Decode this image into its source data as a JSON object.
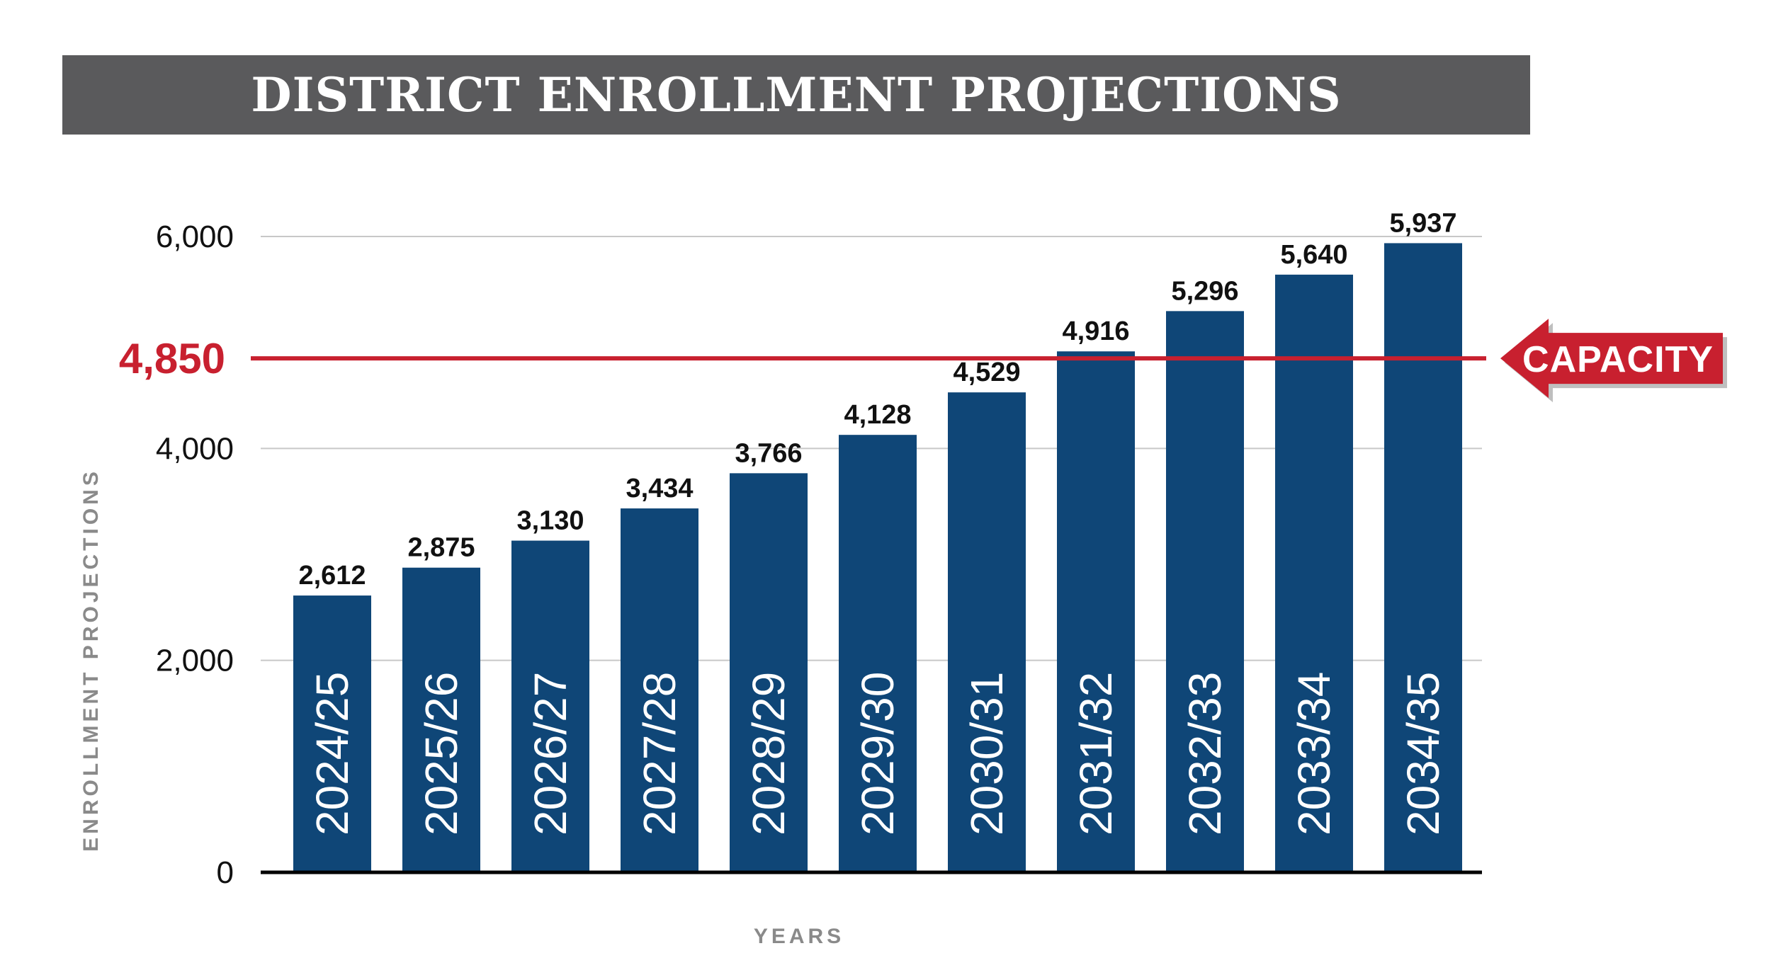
{
  "title": "DISTRICT ENROLLMENT PROJECTIONS",
  "colors": {
    "bar": "#0f4677",
    "capacity": "#c8202f",
    "title_bg": "#5a5a5c",
    "grid": "#c8c8c8"
  },
  "chart_data": {
    "type": "bar",
    "title": "DISTRICT ENROLLMENT PROJECTIONS",
    "xlabel": "YEARS",
    "ylabel": "ENROLLMENT PROJECTIONS",
    "categories": [
      "2024/25",
      "2025/26",
      "2026/27",
      "2027/28",
      "2028/29",
      "2029/30",
      "2030/31",
      "2031/32",
      "2032/33",
      "2033/34",
      "2034/35"
    ],
    "values": [
      2612,
      2875,
      3130,
      3434,
      3766,
      4128,
      4529,
      4916,
      5296,
      5640,
      5937
    ],
    "value_labels": [
      "2,612",
      "2,875",
      "3,130",
      "3,434",
      "3,766",
      "4,128",
      "4,529",
      "4,916",
      "5,296",
      "5,640",
      "5,937"
    ],
    "ylim": [
      0,
      6000
    ],
    "yticks": [
      0,
      2000,
      4000,
      6000
    ],
    "ytick_labels": [
      "0",
      "2,000",
      "4,000",
      "6,000"
    ],
    "grid": true,
    "capacity": {
      "value": 4850,
      "label": "4,850",
      "annotation": "CAPACITY"
    }
  }
}
